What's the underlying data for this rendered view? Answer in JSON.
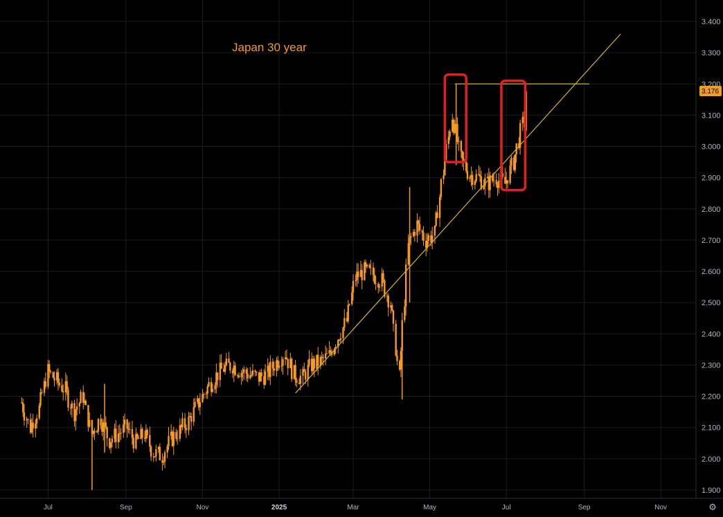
{
  "chart_data": {
    "type": "candlestick",
    "title": "Japan 30 year",
    "y_axis": {
      "ticks": [
        "3.400",
        "3.300",
        "3.200",
        "3.100",
        "3.000",
        "2.900",
        "2.800",
        "2.700",
        "2.600",
        "2.500",
        "2.400",
        "2.300",
        "2.200",
        "2.100",
        "2.000",
        "1.900"
      ],
      "ylim": [
        1.885,
        3.44
      ]
    },
    "x_axis": {
      "ticks": [
        {
          "label": "Jul",
          "bold": false
        },
        {
          "label": "Sep",
          "bold": false
        },
        {
          "label": "Nov",
          "bold": false
        },
        {
          "label": "2025",
          "bold": true
        },
        {
          "label": "Mar",
          "bold": false
        },
        {
          "label": "May",
          "bold": false
        },
        {
          "label": "Jul",
          "bold": false
        },
        {
          "label": "Sep",
          "bold": false
        },
        {
          "label": "Nov",
          "bold": false
        }
      ]
    },
    "last_price": "3.176",
    "series": [
      {
        "date": "2024-06-10",
        "value": 2.18
      },
      {
        "date": "2024-06-17",
        "value": 2.1
      },
      {
        "date": "2024-06-24",
        "value": 2.16
      },
      {
        "date": "2024-07-01",
        "value": 2.28
      },
      {
        "date": "2024-07-08",
        "value": 2.25
      },
      {
        "date": "2024-07-15",
        "value": 2.22
      },
      {
        "date": "2024-07-22",
        "value": 2.15
      },
      {
        "date": "2024-07-29",
        "value": 2.2
      },
      {
        "date": "2024-08-05",
        "value": 2.08
      },
      {
        "date": "2024-08-12",
        "value": 2.13
      },
      {
        "date": "2024-08-19",
        "value": 2.06
      },
      {
        "date": "2024-08-26",
        "value": 2.08
      },
      {
        "date": "2024-09-02",
        "value": 2.1
      },
      {
        "date": "2024-09-09",
        "value": 2.05
      },
      {
        "date": "2024-09-16",
        "value": 2.08
      },
      {
        "date": "2024-09-23",
        "value": 2.02
      },
      {
        "date": "2024-09-30",
        "value": 2.01
      },
      {
        "date": "2024-10-07",
        "value": 2.06
      },
      {
        "date": "2024-10-14",
        "value": 2.09
      },
      {
        "date": "2024-10-21",
        "value": 2.12
      },
      {
        "date": "2024-10-28",
        "value": 2.17
      },
      {
        "date": "2024-11-04",
        "value": 2.22
      },
      {
        "date": "2024-11-11",
        "value": 2.26
      },
      {
        "date": "2024-11-18",
        "value": 2.29
      },
      {
        "date": "2024-11-25",
        "value": 2.3
      },
      {
        "date": "2024-12-02",
        "value": 2.28
      },
      {
        "date": "2024-12-09",
        "value": 2.27
      },
      {
        "date": "2024-12-16",
        "value": 2.26
      },
      {
        "date": "2024-12-23",
        "value": 2.27
      },
      {
        "date": "2024-12-30",
        "value": 2.31
      },
      {
        "date": "2025-01-06",
        "value": 2.34
      },
      {
        "date": "2025-01-13",
        "value": 2.27
      },
      {
        "date": "2025-01-20",
        "value": 2.26
      },
      {
        "date": "2025-01-27",
        "value": 2.3
      },
      {
        "date": "2025-02-03",
        "value": 2.31
      },
      {
        "date": "2025-02-10",
        "value": 2.33
      },
      {
        "date": "2025-02-17",
        "value": 2.39
      },
      {
        "date": "2025-02-24",
        "value": 2.44
      },
      {
        "date": "2025-03-03",
        "value": 2.58
      },
      {
        "date": "2025-03-10",
        "value": 2.6
      },
      {
        "date": "2025-03-17",
        "value": 2.59
      },
      {
        "date": "2025-03-24",
        "value": 2.57
      },
      {
        "date": "2025-03-31",
        "value": 2.5
      },
      {
        "date": "2025-04-07",
        "value": 2.26
      },
      {
        "date": "2025-04-14",
        "value": 2.68
      },
      {
        "date": "2025-04-21",
        "value": 2.75
      },
      {
        "date": "2025-04-28",
        "value": 2.7
      },
      {
        "date": "2025-05-05",
        "value": 2.72
      },
      {
        "date": "2025-05-12",
        "value": 2.92
      },
      {
        "date": "2025-05-19",
        "value": 3.1
      },
      {
        "date": "2025-05-26",
        "value": 2.96
      },
      {
        "date": "2025-06-02",
        "value": 2.91
      },
      {
        "date": "2025-06-09",
        "value": 2.9
      },
      {
        "date": "2025-06-16",
        "value": 2.88
      },
      {
        "date": "2025-06-23",
        "value": 2.9
      },
      {
        "date": "2025-06-30",
        "value": 2.88
      },
      {
        "date": "2025-07-07",
        "value": 2.95
      },
      {
        "date": "2025-07-14",
        "value": 3.07
      },
      {
        "date": "2025-07-18",
        "value": 3.176
      }
    ],
    "grid": true,
    "colors": {
      "background": "#000000",
      "candle": "#f59a23",
      "trendline": "#d4b62a",
      "highlight_box": "#e02020",
      "grid": "#1c1c1c",
      "axis_text": "#b2b5be"
    },
    "annotations": [
      {
        "type": "trendline",
        "kind": "ascending",
        "from": {
          "date": "2025-01-14",
          "value": 2.21
        },
        "to": {
          "date": "2025-09-30",
          "value": 3.36
        }
      },
      {
        "type": "trendline",
        "kind": "horizontal",
        "from": {
          "date": "2025-05-21",
          "value": 3.2
        },
        "to": {
          "date": "2025-09-05",
          "value": 3.2
        }
      },
      {
        "type": "highlight_box",
        "from": {
          "date": "2025-05-13",
          "value": 2.95
        },
        "to": {
          "date": "2025-05-30",
          "value": 3.23
        }
      },
      {
        "type": "highlight_box",
        "from": {
          "date": "2025-06-27",
          "value": 2.86
        },
        "to": {
          "date": "2025-07-16",
          "value": 3.21
        }
      }
    ]
  }
}
